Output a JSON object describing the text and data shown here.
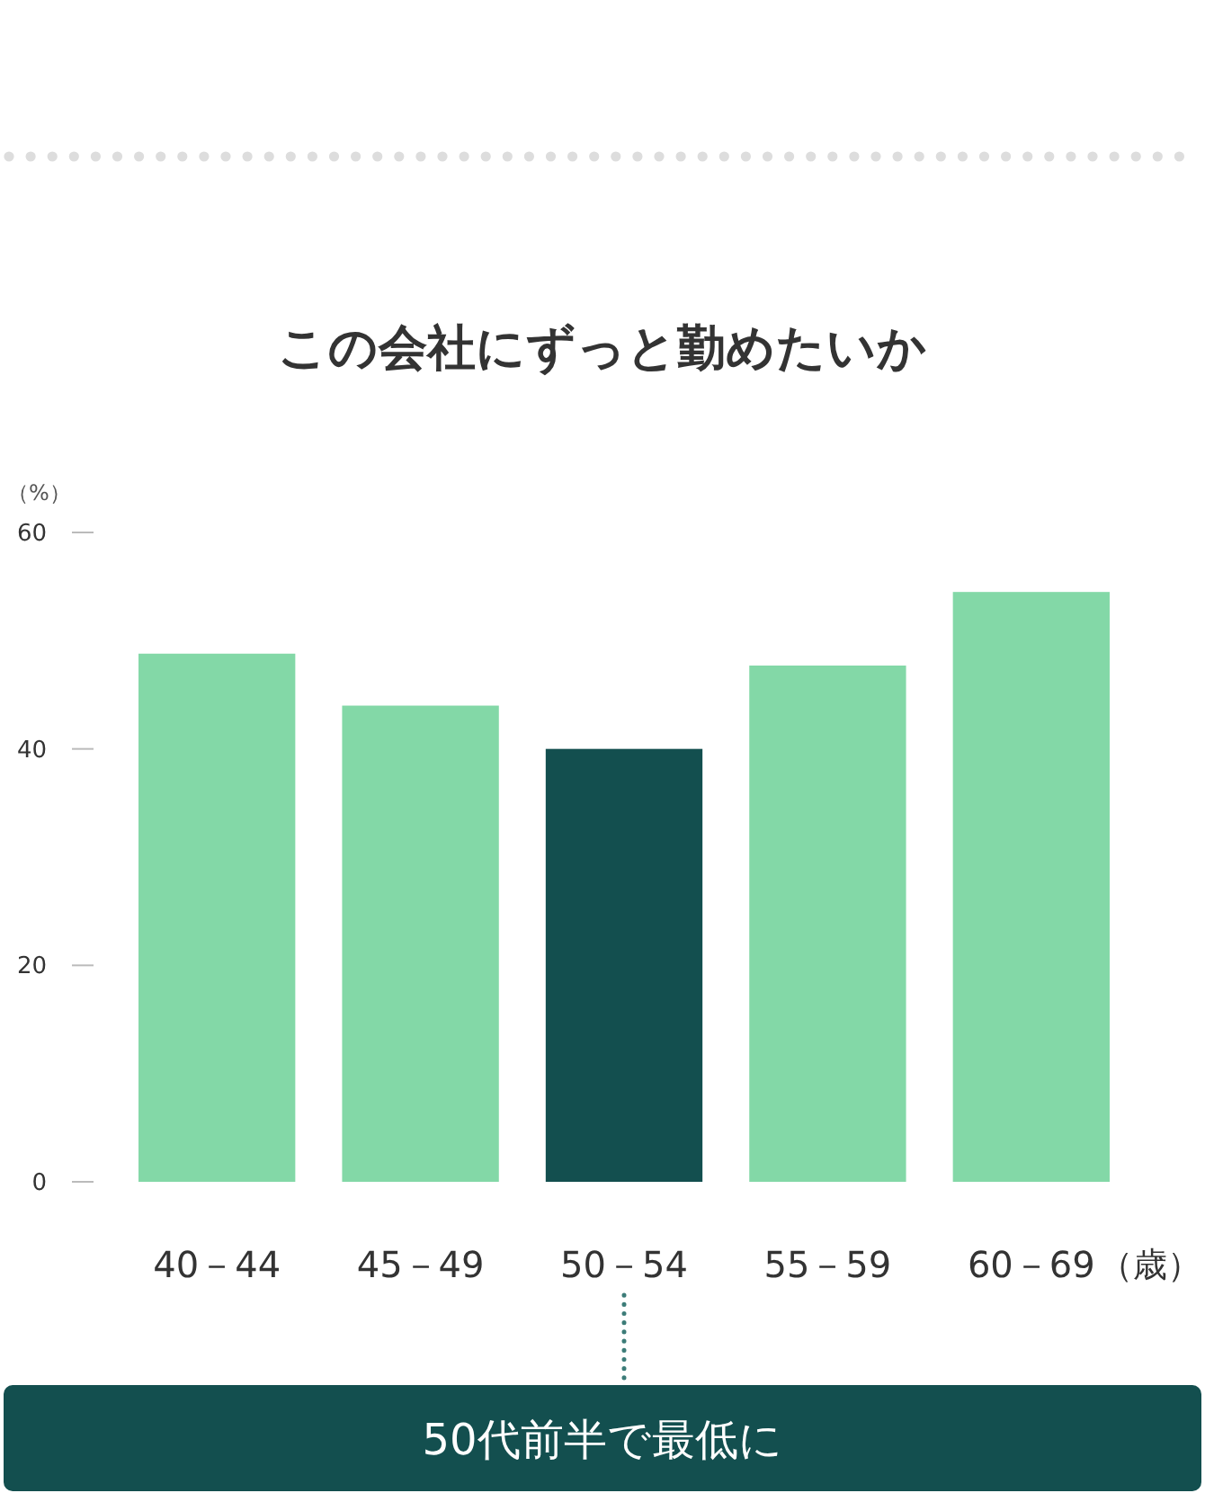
{
  "chart_data": {
    "type": "bar",
    "title": "この会社にずっと勤めたいか",
    "ylabel": "（%）",
    "xlabel": "（歳）",
    "categories": [
      "40－44",
      "45－49",
      "50－54",
      "55－59",
      "60－69"
    ],
    "values": [
      48.8,
      44.0,
      40.0,
      47.7,
      54.5
    ],
    "colors": [
      "#83d8a7",
      "#83d8a7",
      "#134f4f",
      "#83d8a7",
      "#83d8a7"
    ],
    "ylim": [
      0,
      60
    ],
    "yticks": [
      0,
      20,
      40,
      60
    ],
    "annotations": [
      {
        "text": "50代前半で最低に",
        "x": "50－54"
      }
    ]
  }
}
